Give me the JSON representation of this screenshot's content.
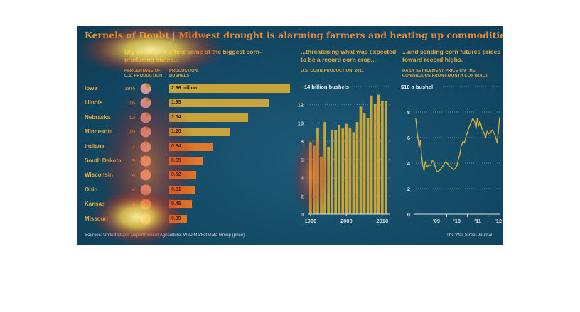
{
  "header": {
    "title_main": "Kernels of Doubt",
    "title_sep": "|",
    "title_sub": "Midwest drought is alarming farmers and heating up commodities markets"
  },
  "sections": {
    "left_heading": "Dry conditions affect some of the biggest corn-producing states...",
    "left_col_pct": "PERCENTAGE OF U.S. PRODUCTION",
    "left_col_prod": "PRODUCTION, BUSHELS",
    "middle_heading": "...threatening what was expected to be a record corn crop...",
    "middle_subheading": "U.S. CORN PRODUCTION, 2011",
    "right_heading": "...and sending corn futures prices toward record highs.",
    "right_subheading": "DAILY SETTLEMENT PRICE ON THE CONTINUOUS FRONT-MONTH CONTRACT"
  },
  "footer": {
    "sources": "Sources: United States Department of Agriculture; WSJ Market Data Group (price)",
    "credit": "The Wall Street Journal"
  },
  "colors": {
    "accent": "#e4a63e",
    "bar_high": "#c9a43a",
    "bar_low": "#e3782a",
    "bar_label": "#d2ad3c",
    "price_line": "#d6b23a",
    "pie": "#d7a2a2"
  },
  "chart_data": [
    {
      "type": "bar",
      "orientation": "horizontal",
      "title": "Dry conditions affect some of the biggest corn-producing states...",
      "categories": [
        "Iowa",
        "Illinois",
        "Nebraska",
        "Minnesota",
        "Indiana",
        "South Dakota",
        "Wisconsin",
        "Ohio",
        "Kansas",
        "Missouri"
      ],
      "percent_of_us_production": [
        19,
        16,
        12,
        10,
        7,
        5,
        4,
        4,
        4,
        3
      ],
      "percent_labels": [
        "19%",
        "16",
        "12",
        "10",
        "7",
        "5",
        "4",
        "4",
        "4",
        "3"
      ],
      "values": [
        2.36,
        1.95,
        1.54,
        1.2,
        0.84,
        0.65,
        0.52,
        0.51,
        0.45,
        0.35
      ],
      "value_labels": [
        "2.36 billion",
        "1.95",
        "1.54",
        "1.20",
        "0.84",
        "0.65",
        "0.52",
        "0.51",
        "0.45",
        "0.35"
      ],
      "column_headers": [
        "PERCENTAGE OF U.S. PRODUCTION",
        "PRODUCTION, BUSHELS"
      ]
    },
    {
      "type": "bar",
      "title": "...threatening what was expected to be a record corn crop...",
      "subtitle": "U.S. CORN PRODUCTION, 2011",
      "unit_label": "14 billion bushels",
      "x": [
        1990,
        1991,
        1992,
        1993,
        1994,
        1995,
        1996,
        1997,
        1998,
        1999,
        2000,
        2001,
        2002,
        2003,
        2004,
        2005,
        2006,
        2007,
        2008,
        2009,
        2010,
        2011
      ],
      "values": [
        7.9,
        7.5,
        9.5,
        6.3,
        10.1,
        7.4,
        9.2,
        9.2,
        9.8,
        9.4,
        9.9,
        9.5,
        9.0,
        10.1,
        11.8,
        11.1,
        10.5,
        13.0,
        12.1,
        13.1,
        12.4,
        12.4
      ],
      "ylim": [
        0,
        14
      ],
      "yticks": [
        0,
        2,
        4,
        6,
        8,
        10,
        12
      ],
      "xticks": [
        "1990",
        "2000",
        "2010"
      ]
    },
    {
      "type": "line",
      "title": "...and sending corn futures prices toward record highs.",
      "subtitle": "DAILY SETTLEMENT PRICE ON THE CONTINUOUS FRONT-MONTH CONTRACT",
      "unit_label": "$10 a bushel",
      "x_range": [
        2008.5,
        2012.6
      ],
      "ylim": [
        0,
        10
      ],
      "yticks": [
        0,
        2,
        4,
        6,
        8
      ],
      "xticks": [
        "'09",
        "'10",
        "'11",
        "'12"
      ],
      "points": [
        [
          2008.5,
          7.5
        ],
        [
          2008.55,
          6.6
        ],
        [
          2008.6,
          6.0
        ],
        [
          2008.66,
          5.2
        ],
        [
          2008.72,
          5.8
        ],
        [
          2008.78,
          4.6
        ],
        [
          2008.84,
          3.8
        ],
        [
          2008.9,
          3.4
        ],
        [
          2008.96,
          4.1
        ],
        [
          2009.0,
          3.9
        ],
        [
          2009.06,
          3.7
        ],
        [
          2009.14,
          3.9
        ],
        [
          2009.22,
          3.8
        ],
        [
          2009.3,
          4.2
        ],
        [
          2009.38,
          4.1
        ],
        [
          2009.46,
          3.6
        ],
        [
          2009.54,
          3.3
        ],
        [
          2009.62,
          3.4
        ],
        [
          2009.7,
          3.5
        ],
        [
          2009.78,
          3.7
        ],
        [
          2009.86,
          3.9
        ],
        [
          2009.94,
          4.1
        ],
        [
          2010.02,
          4.0
        ],
        [
          2010.1,
          3.8
        ],
        [
          2010.18,
          3.7
        ],
        [
          2010.26,
          3.6
        ],
        [
          2010.34,
          3.5
        ],
        [
          2010.42,
          3.6
        ],
        [
          2010.5,
          3.8
        ],
        [
          2010.56,
          4.3
        ],
        [
          2010.62,
          4.6
        ],
        [
          2010.7,
          5.3
        ],
        [
          2010.78,
          5.7
        ],
        [
          2010.86,
          5.6
        ],
        [
          2010.94,
          6.1
        ],
        [
          2011.02,
          6.5
        ],
        [
          2011.1,
          6.9
        ],
        [
          2011.18,
          7.2
        ],
        [
          2011.26,
          7.5
        ],
        [
          2011.34,
          7.3
        ],
        [
          2011.42,
          6.7
        ],
        [
          2011.48,
          7.5
        ],
        [
          2011.54,
          6.9
        ],
        [
          2011.6,
          7.3
        ],
        [
          2011.66,
          7.0
        ],
        [
          2011.72,
          6.6
        ],
        [
          2011.8,
          6.4
        ],
        [
          2011.88,
          6.0
        ],
        [
          2011.96,
          6.5
        ],
        [
          2012.04,
          6.3
        ],
        [
          2012.12,
          6.4
        ],
        [
          2012.2,
          6.6
        ],
        [
          2012.28,
          6.4
        ],
        [
          2012.36,
          6.1
        ],
        [
          2012.44,
          5.6
        ],
        [
          2012.5,
          6.4
        ],
        [
          2012.56,
          7.6
        ]
      ]
    }
  ]
}
